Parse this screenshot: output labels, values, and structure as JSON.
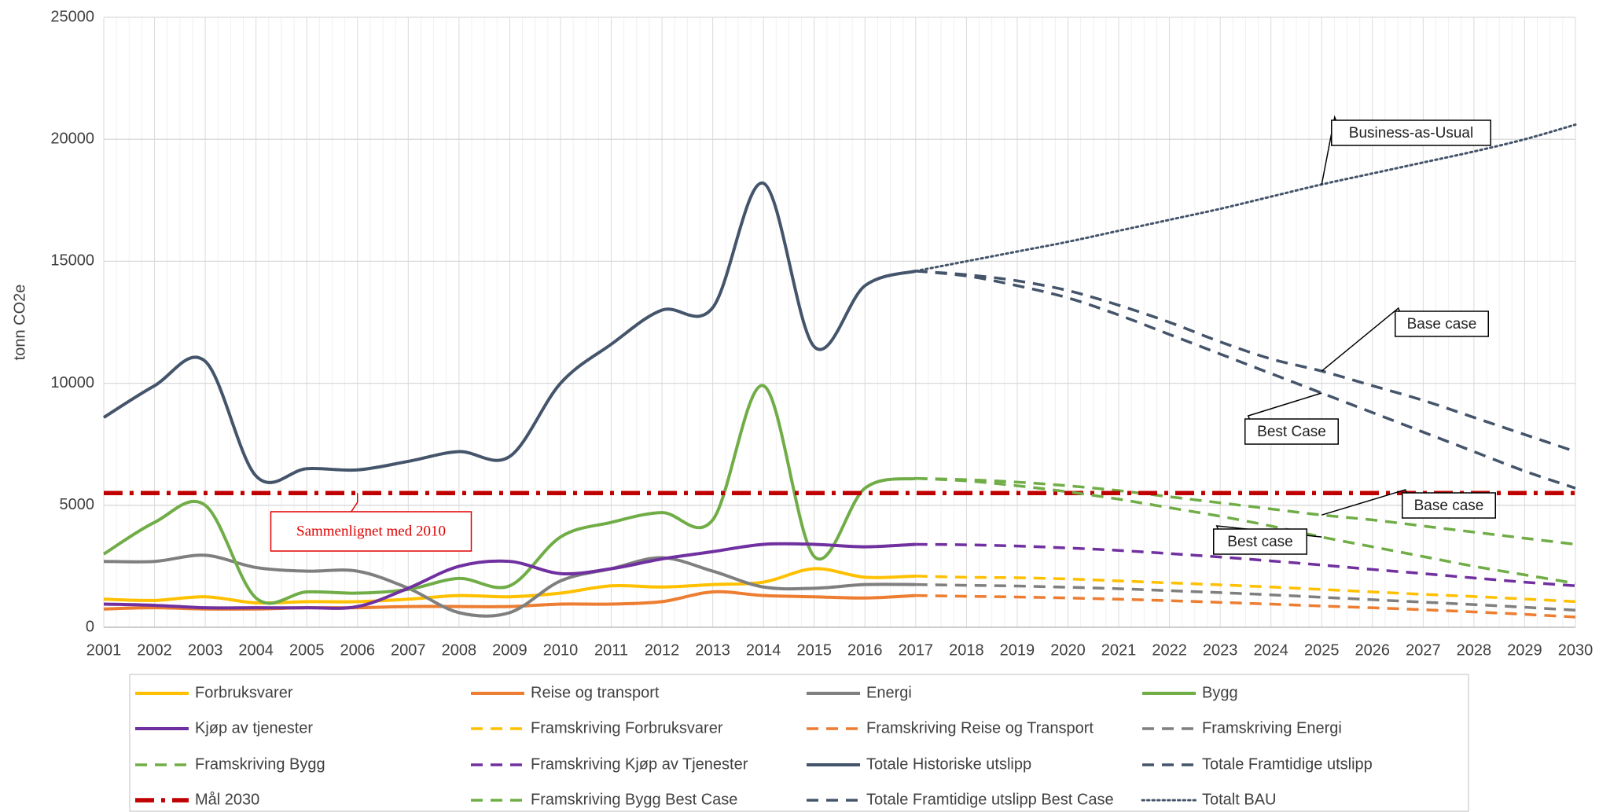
{
  "chart_data": {
    "type": "line",
    "y_label": "tonn CO2e",
    "categories": [
      "2001",
      "2002",
      "2003",
      "2004",
      "2005",
      "2006",
      "2007",
      "2008",
      "2009",
      "2010",
      "2011",
      "2012",
      "2013",
      "2014",
      "2015",
      "2016",
      "2017",
      "2018",
      "2019",
      "2020",
      "2021",
      "2022",
      "2023",
      "2024",
      "2025",
      "2026",
      "2027",
      "2028",
      "2029",
      "2030"
    ],
    "ylim": [
      0,
      25000
    ],
    "yticks": [
      0,
      5000,
      10000,
      15000,
      20000,
      25000
    ],
    "grid": true,
    "legend": "bottom",
    "smooth": true,
    "series": [
      {
        "name": "Forbruksvarer",
        "color": "#ffc000",
        "dash": "solid",
        "values": [
          1150,
          1100,
          1250,
          1000,
          1050,
          1050,
          1150,
          1300,
          1250,
          1400,
          1700,
          1650,
          1750,
          1850,
          2400,
          2050,
          2100,
          null,
          null,
          null,
          null,
          null,
          null,
          null,
          null,
          null,
          null,
          null,
          null,
          null
        ]
      },
      {
        "name": "Reise og transport",
        "color": "#ed7d31",
        "dash": "solid",
        "values": [
          750,
          800,
          750,
          750,
          800,
          800,
          850,
          850,
          850,
          950,
          950,
          1050,
          1450,
          1300,
          1250,
          1200,
          1300,
          null,
          null,
          null,
          null,
          null,
          null,
          null,
          null,
          null,
          null,
          null,
          null,
          null
        ]
      },
      {
        "name": "Energi",
        "color": "#7f7f7f",
        "dash": "solid",
        "values": [
          2700,
          2700,
          2950,
          2450,
          2300,
          2300,
          1600,
          600,
          600,
          1900,
          2400,
          2850,
          2300,
          1650,
          1600,
          1750,
          1750,
          null,
          null,
          null,
          null,
          null,
          null,
          null,
          null,
          null,
          null,
          null,
          null,
          null
        ]
      },
      {
        "name": "Bygg",
        "color": "#70ad47",
        "dash": "solid",
        "values": [
          3000,
          4300,
          5000,
          1200,
          1450,
          1400,
          1550,
          2000,
          1700,
          3700,
          4300,
          4700,
          4400,
          9900,
          2900,
          5700,
          6100,
          null,
          null,
          null,
          null,
          null,
          null,
          null,
          null,
          null,
          null,
          null,
          null,
          null
        ]
      },
      {
        "name": "Kjøp av tjenester",
        "color": "#7030a0",
        "dash": "solid",
        "values": [
          950,
          900,
          800,
          800,
          800,
          850,
          1600,
          2500,
          2700,
          2200,
          2400,
          2800,
          3100,
          3400,
          3400,
          3300,
          3400,
          null,
          null,
          null,
          null,
          null,
          null,
          null,
          null,
          null,
          null,
          null,
          null,
          null
        ]
      },
      {
        "name": "Framskriving Forbruksvarer",
        "color": "#ffc000",
        "dash": "dashed",
        "values": [
          null,
          null,
          null,
          null,
          null,
          null,
          null,
          null,
          null,
          null,
          null,
          null,
          null,
          null,
          null,
          null,
          2100,
          2050,
          2030,
          1980,
          1900,
          1820,
          1740,
          1650,
          1550,
          1450,
          1350,
          1260,
          1160,
          1050
        ]
      },
      {
        "name": "Framskriving Reise og Transport",
        "color": "#ed7d31",
        "dash": "dashed",
        "values": [
          null,
          null,
          null,
          null,
          null,
          null,
          null,
          null,
          null,
          null,
          null,
          null,
          null,
          null,
          null,
          null,
          1300,
          1270,
          1240,
          1200,
          1150,
          1090,
          1020,
          950,
          870,
          800,
          720,
          630,
          530,
          420
        ]
      },
      {
        "name": "Framskriving Energi",
        "color": "#7f7f7f",
        "dash": "dashed",
        "values": [
          null,
          null,
          null,
          null,
          null,
          null,
          null,
          null,
          null,
          null,
          null,
          null,
          null,
          null,
          null,
          null,
          1750,
          1720,
          1690,
          1640,
          1580,
          1500,
          1420,
          1330,
          1230,
          1130,
          1030,
          930,
          820,
          700
        ]
      },
      {
        "name": "Framskriving Bygg",
        "color": "#70ad47",
        "dash": "dashed",
        "values": [
          null,
          null,
          null,
          null,
          null,
          null,
          null,
          null,
          null,
          null,
          null,
          null,
          null,
          null,
          null,
          null,
          6100,
          6050,
          5950,
          5800,
          5600,
          5350,
          5100,
          4850,
          4600,
          4400,
          4150,
          3900,
          3650,
          3400
        ]
      },
      {
        "name": "Framskriving Kjøp av Tjenester",
        "color": "#7030a0",
        "dash": "dashed",
        "values": [
          null,
          null,
          null,
          null,
          null,
          null,
          null,
          null,
          null,
          null,
          null,
          null,
          null,
          null,
          null,
          null,
          3400,
          3380,
          3330,
          3250,
          3150,
          3020,
          2880,
          2720,
          2550,
          2370,
          2200,
          2020,
          1850,
          1700
        ]
      },
      {
        "name": "Totale Historiske utslipp",
        "color": "#44546a",
        "dash": "solid",
        "values": [
          8600,
          9900,
          10900,
          6200,
          6500,
          6450,
          6800,
          7200,
          7000,
          10000,
          11600,
          13000,
          13100,
          18200,
          11500,
          14000,
          14600,
          null,
          null,
          null,
          null,
          null,
          null,
          null,
          null,
          null,
          null,
          null,
          null,
          null
        ]
      },
      {
        "name": "Totale Framtidige utslipp",
        "color": "#44546a",
        "dash": "dashed",
        "values": [
          null,
          null,
          null,
          null,
          null,
          null,
          null,
          null,
          null,
          null,
          null,
          null,
          null,
          null,
          null,
          null,
          14600,
          14450,
          14200,
          13800,
          13200,
          12500,
          11700,
          11000,
          10500,
          9900,
          9300,
          8600,
          7900,
          7200
        ]
      },
      {
        "name": "Mål 2030",
        "color": "#c00000",
        "dash": "dashdot",
        "values": [
          5500,
          5500,
          5500,
          5500,
          5500,
          5500,
          5500,
          5500,
          5500,
          5500,
          5500,
          5500,
          5500,
          5500,
          5500,
          5500,
          5500,
          5500,
          5500,
          5500,
          5500,
          5500,
          5500,
          5500,
          5500,
          5500,
          5500,
          5500,
          5500,
          5500
        ]
      },
      {
        "name": "Framskriving Bygg Best Case",
        "color": "#70ad47",
        "dash": "dashed",
        "values": [
          null,
          null,
          null,
          null,
          null,
          null,
          null,
          null,
          null,
          null,
          null,
          null,
          null,
          null,
          null,
          null,
          6100,
          6000,
          5800,
          5550,
          5250,
          4900,
          4550,
          4150,
          3700,
          3300,
          2900,
          2500,
          2150,
          1800
        ]
      },
      {
        "name": "Totale Framtidige utslipp Best Case",
        "color": "#44546a",
        "dash": "dashed",
        "values": [
          null,
          null,
          null,
          null,
          null,
          null,
          null,
          null,
          null,
          null,
          null,
          null,
          null,
          null,
          null,
          null,
          14600,
          14400,
          14000,
          13500,
          12800,
          12000,
          11200,
          10400,
          9600,
          8800,
          8000,
          7200,
          6400,
          5700
        ]
      },
      {
        "name": "Totalt BAU",
        "color": "#44546a",
        "dash": "dotted",
        "values": [
          null,
          null,
          null,
          null,
          null,
          null,
          null,
          null,
          null,
          null,
          null,
          null,
          null,
          null,
          null,
          null,
          14600,
          15000,
          15400,
          15800,
          16250,
          16700,
          17150,
          17650,
          18150,
          18600,
          19050,
          19500,
          20000,
          20600
        ]
      }
    ],
    "annotations": [
      {
        "text": "Business-as-Usual",
        "series": 15
      },
      {
        "text": "Base case",
        "series": 11
      },
      {
        "text": "Best Case",
        "series": 14
      },
      {
        "text": "Base case",
        "series": 8
      },
      {
        "text": "Best case",
        "series": 13
      },
      {
        "text": "Sammenlignet med 2010",
        "series": 12
      }
    ]
  }
}
